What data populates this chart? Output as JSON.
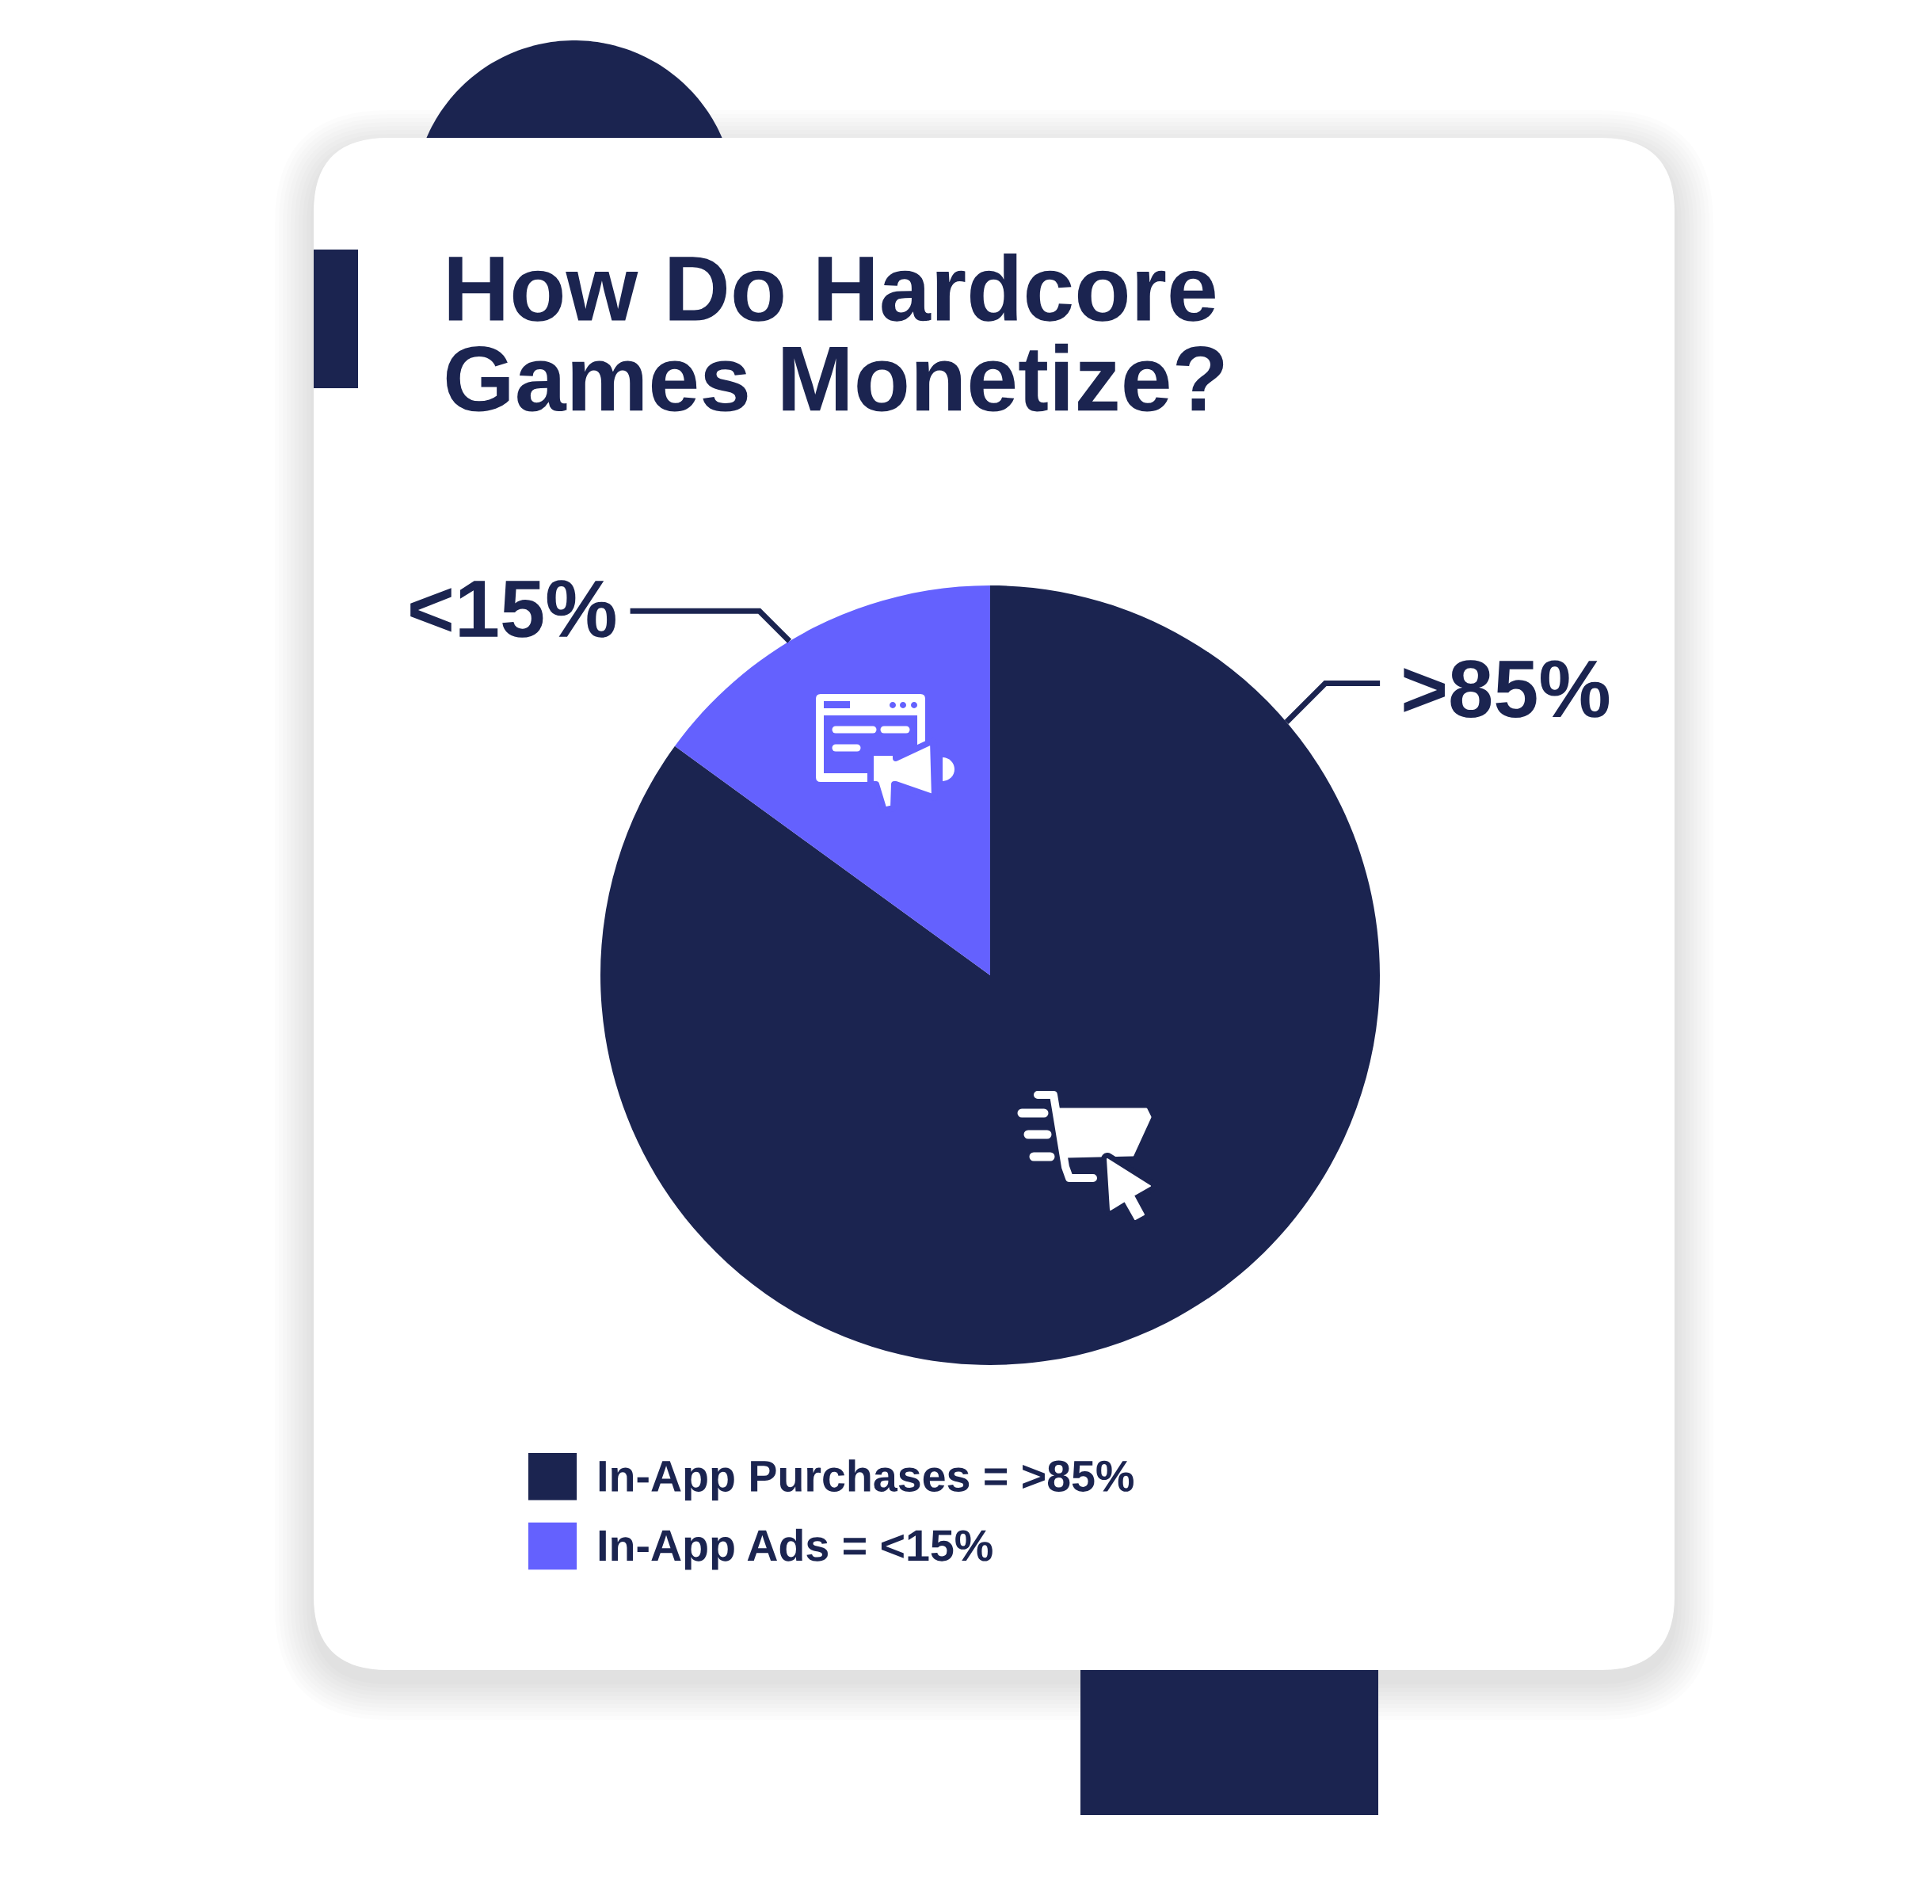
{
  "chart_data": {
    "type": "pie",
    "title": "How Do Hardcore\nGames Monetize?",
    "categories": [
      "In-App Purchases = >85%",
      "In-App Ads = <15%"
    ],
    "values": [
      85,
      15
    ],
    "colors": [
      "#1b2450",
      "#6461fe"
    ],
    "value_labels": [
      ">85%",
      "<15%"
    ],
    "legend": "bottom"
  }
}
